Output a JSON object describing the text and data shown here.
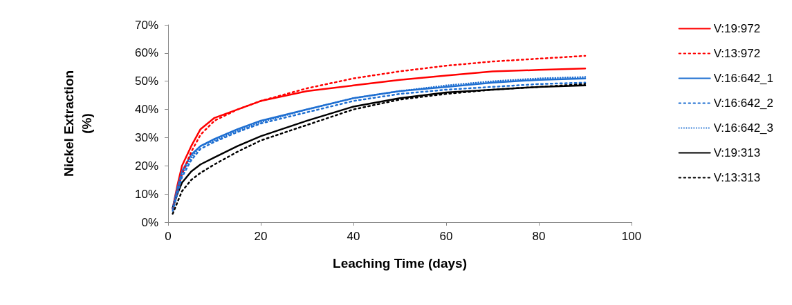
{
  "chart_data": {
    "type": "line",
    "xlabel": "Leaching Time (days)",
    "ylabel": "Nickel Extraction\n(%)",
    "x": [
      1,
      2,
      3,
      5,
      7,
      10,
      15,
      20,
      30,
      40,
      50,
      60,
      70,
      80,
      90
    ],
    "series": [
      {
        "name": "V:19:972",
        "color": "#ff0000",
        "line_style": "solid",
        "values": [
          5,
          13,
          20,
          27,
          33,
          37,
          40,
          43,
          46.5,
          48.5,
          50.5,
          52,
          53.5,
          54,
          54.5
        ]
      },
      {
        "name": "V:13:972",
        "color": "#ff0000",
        "line_style": "dashed",
        "values": [
          4.5,
          11,
          17,
          25,
          31,
          36,
          40,
          43,
          47.5,
          51,
          53.5,
          55.5,
          57,
          58,
          59
        ]
      },
      {
        "name": "V:16:642_1",
        "color": "#1f6fd1",
        "line_style": "solid",
        "values": [
          5,
          12,
          18,
          24,
          27,
          29.5,
          33,
          36,
          40,
          44,
          46.5,
          48,
          49.5,
          50.5,
          51
        ]
      },
      {
        "name": "V:16:642_2",
        "color": "#1f6fd1",
        "line_style": "dashed",
        "values": [
          4,
          10,
          16,
          22,
          26,
          28.5,
          32,
          35,
          39,
          43,
          45.5,
          47,
          48,
          49,
          49.5
        ]
      },
      {
        "name": "V:16:642_3",
        "color": "#1f6fd1",
        "line_style": "dotted",
        "values": [
          5,
          11,
          17,
          23,
          27,
          29,
          32.5,
          35.5,
          40,
          44,
          46.5,
          48.5,
          50,
          51,
          51.5
        ]
      },
      {
        "name": "V:19:313",
        "color": "#000000",
        "line_style": "solid",
        "values": [
          5,
          10,
          14,
          18,
          20.5,
          23,
          27,
          30.5,
          36,
          41,
          44,
          46,
          47,
          48,
          48.5
        ]
      },
      {
        "name": "V:13:313",
        "color": "#000000",
        "line_style": "dashed",
        "values": [
          3,
          7,
          11,
          15,
          17.5,
          20.5,
          25,
          29,
          34.5,
          40,
          43.5,
          45.5,
          47,
          48,
          49
        ]
      }
    ],
    "xlim": [
      0,
      100
    ],
    "xticks": [
      0,
      20,
      40,
      60,
      80,
      100
    ],
    "ylim": [
      0,
      70
    ],
    "yticks": [
      {
        "value": 0,
        "label": "0%"
      },
      {
        "value": 10,
        "label": "10%"
      },
      {
        "value": 20,
        "label": "20%"
      },
      {
        "value": 30,
        "label": "30%"
      },
      {
        "value": 40,
        "label": "40%"
      },
      {
        "value": 50,
        "label": "50%"
      },
      {
        "value": 60,
        "label": "60%"
      },
      {
        "value": 70,
        "label": "70%"
      }
    ],
    "grid": false,
    "legend": "right",
    "marker": "none"
  }
}
